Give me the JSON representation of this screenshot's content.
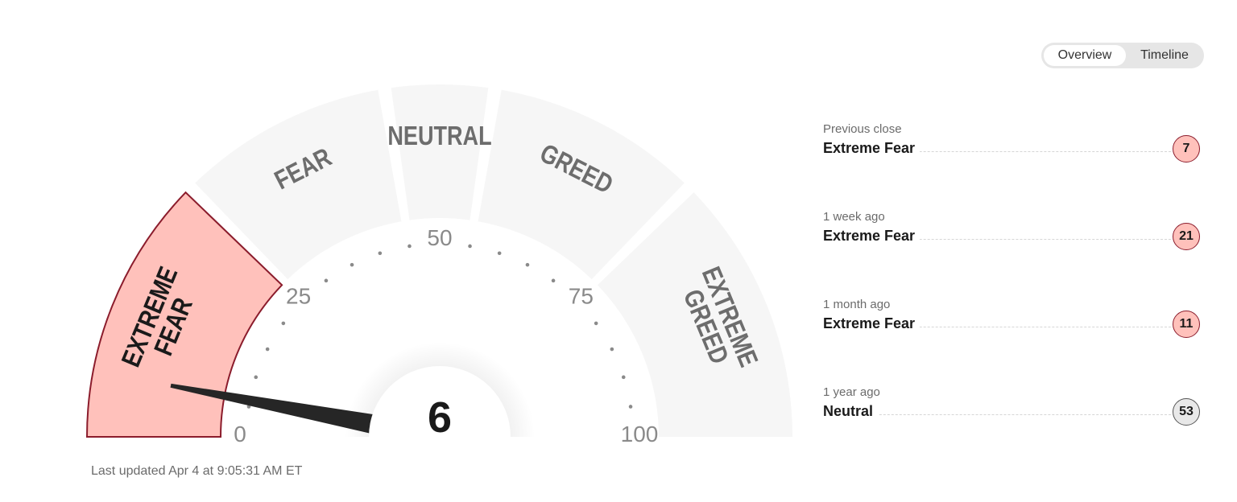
{
  "toggle": {
    "options": [
      "Overview",
      "Timeline"
    ],
    "active": "Overview"
  },
  "chart_data": {
    "type": "gauge",
    "value": 6,
    "range": [
      0,
      100
    ],
    "tick_labels": [
      "0",
      "25",
      "50",
      "75",
      "100"
    ],
    "minor_tick_step": 5,
    "segments": [
      {
        "label": [
          "EXTREME",
          "FEAR"
        ],
        "from": 0,
        "to": 25,
        "active": true
      },
      {
        "label": [
          "FEAR"
        ],
        "from": 25,
        "to": 45,
        "active": false
      },
      {
        "label": [
          "NEUTRAL"
        ],
        "from": 45,
        "to": 55,
        "active": false
      },
      {
        "label": [
          "GREED"
        ],
        "from": 55,
        "to": 75,
        "active": false
      },
      {
        "label": [
          "EXTREME",
          "GREED"
        ],
        "from": 75,
        "to": 100,
        "active": false
      }
    ],
    "colors": {
      "active_fill": "#ffc1bb",
      "active_stroke": "#8b1c2c",
      "inactive_fill": "#f6f6f6",
      "needle": "#262626"
    }
  },
  "last_updated": "Last updated Apr 4 at 9:05:31 AM ET",
  "history": [
    {
      "label": "Previous close",
      "rating": "Extreme Fear",
      "value": "7"
    },
    {
      "label": "1 week ago",
      "rating": "Extreme Fear",
      "value": "21"
    },
    {
      "label": "1 month ago",
      "rating": "Extreme Fear",
      "value": "11"
    },
    {
      "label": "1 year ago",
      "rating": "Neutral",
      "value": "53"
    }
  ]
}
